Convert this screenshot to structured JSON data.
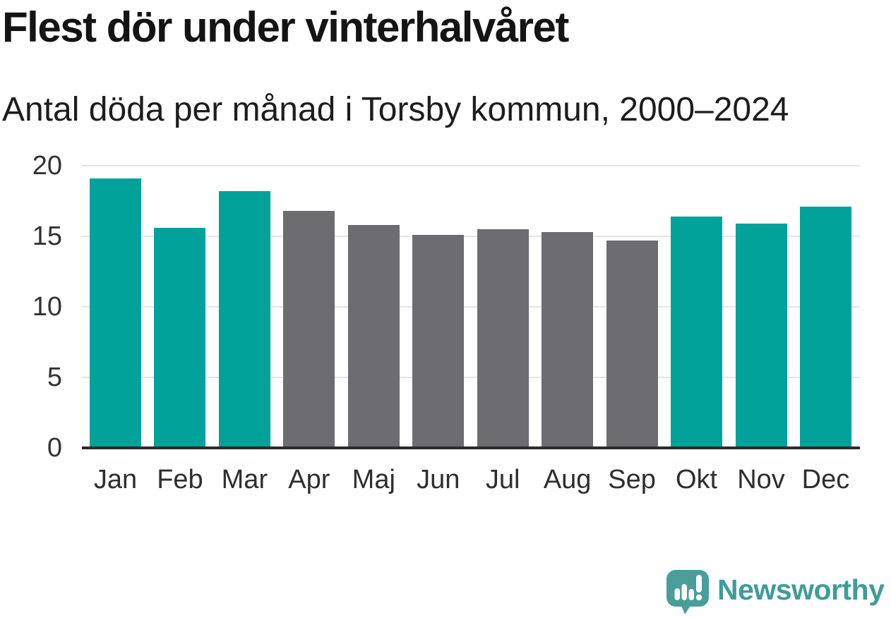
{
  "header": {
    "title": "Flest dör under vinterhalvåret",
    "subtitle": "Antal döda per månad i Torsby kommun, 2000–2024"
  },
  "chart_data": {
    "type": "bar",
    "title": "Flest dör under vinterhalvåret",
    "subtitle": "Antal döda per månad i Torsby kommun, 2000–2024",
    "categories": [
      "Jan",
      "Feb",
      "Mar",
      "Apr",
      "Maj",
      "Jun",
      "Jul",
      "Aug",
      "Sep",
      "Okt",
      "Nov",
      "Dec"
    ],
    "values": [
      19.1,
      15.6,
      18.2,
      16.8,
      15.8,
      15.1,
      15.5,
      15.3,
      14.7,
      16.4,
      15.9,
      17.1
    ],
    "bar_colors": [
      "#00A29A",
      "#00A29A",
      "#00A29A",
      "#6C6C71",
      "#6C6C71",
      "#6C6C71",
      "#6C6C71",
      "#6C6C71",
      "#6C6C71",
      "#00A29A",
      "#00A29A",
      "#00A29A"
    ],
    "highlighted_categories": [
      "Jan",
      "Feb",
      "Mar",
      "Okt",
      "Nov",
      "Dec"
    ],
    "xlabel": "",
    "ylabel": "",
    "ylim": [
      0,
      20
    ],
    "yticks": [
      0,
      5,
      10,
      15,
      20
    ],
    "grid": true,
    "legend_position": "none",
    "gridline_color": "#E5E5E6",
    "baseline_color": "#2B2B2B"
  },
  "footer": {
    "brand": "Newsworthy",
    "logo_icon": "newsworthy-speech-bubble-chart-icon",
    "logo_color": "#4A9E99",
    "brand_text_color": "#3F9C97"
  }
}
